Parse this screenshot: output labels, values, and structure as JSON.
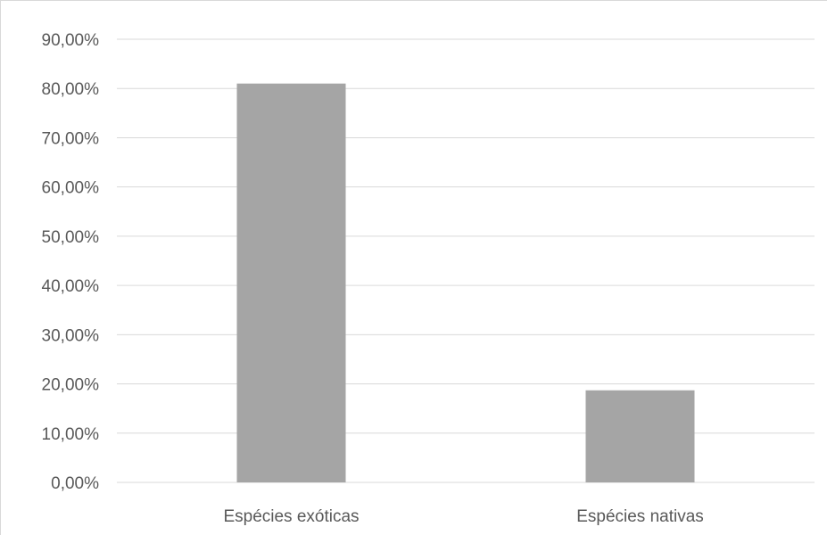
{
  "chart_data": {
    "type": "bar",
    "categories": [
      "Espécies exóticas",
      "Espécies nativas"
    ],
    "values": [
      81.0,
      18.7
    ],
    "ylim": [
      0,
      90
    ],
    "y_ticks": [
      "0,00%",
      "10,00%",
      "20,00%",
      "30,00%",
      "40,00%",
      "50,00%",
      "60,00%",
      "70,00%",
      "80,00%",
      "90,00%"
    ],
    "title": "",
    "xlabel": "",
    "ylabel": "",
    "grid": true,
    "legend": "none",
    "colors": {
      "bar": "#a5a5a5",
      "grid": "#d9d9d9",
      "text": "#595959"
    }
  }
}
